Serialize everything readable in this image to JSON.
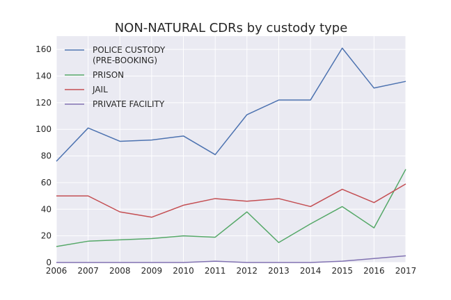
{
  "chart_data": {
    "type": "line",
    "title": "NON-NATURAL CDRs by custody type",
    "xlabel": "",
    "ylabel": "",
    "x": [
      "2006",
      "2007",
      "2008",
      "2009",
      "2010",
      "2011",
      "2012",
      "2013",
      "2014",
      "2015",
      "2016",
      "2017"
    ],
    "xlim": [
      2006,
      2017
    ],
    "ylim": [
      0,
      170
    ],
    "yticks": [
      0,
      20,
      40,
      60,
      80,
      100,
      120,
      140,
      160
    ],
    "grid": true,
    "legend_position": "top-left",
    "series": [
      {
        "name": "POLICE CUSTODY (PRE-BOOKING)",
        "name_lines": [
          "POLICE CUSTODY",
          "(PRE-BOOKING)"
        ],
        "color": "#4c72b0",
        "values": [
          76,
          101,
          91,
          92,
          95,
          81,
          111,
          122,
          122,
          161,
          131,
          136
        ]
      },
      {
        "name": "PRISON",
        "name_lines": [
          "PRISON"
        ],
        "color": "#55a868",
        "values": [
          12,
          16,
          17,
          18,
          20,
          19,
          38,
          15,
          29,
          42,
          26,
          70
        ]
      },
      {
        "name": "JAIL",
        "name_lines": [
          "JAIL"
        ],
        "color": "#c44e52",
        "values": [
          50,
          50,
          38,
          34,
          43,
          48,
          46,
          48,
          42,
          55,
          45,
          59
        ]
      },
      {
        "name": "PRIVATE FACILITY",
        "name_lines": [
          "PRIVATE FACILITY"
        ],
        "color": "#8172b2",
        "values": [
          0,
          0,
          0,
          0,
          0,
          1,
          0,
          0,
          0,
          1,
          3,
          5
        ]
      }
    ]
  }
}
